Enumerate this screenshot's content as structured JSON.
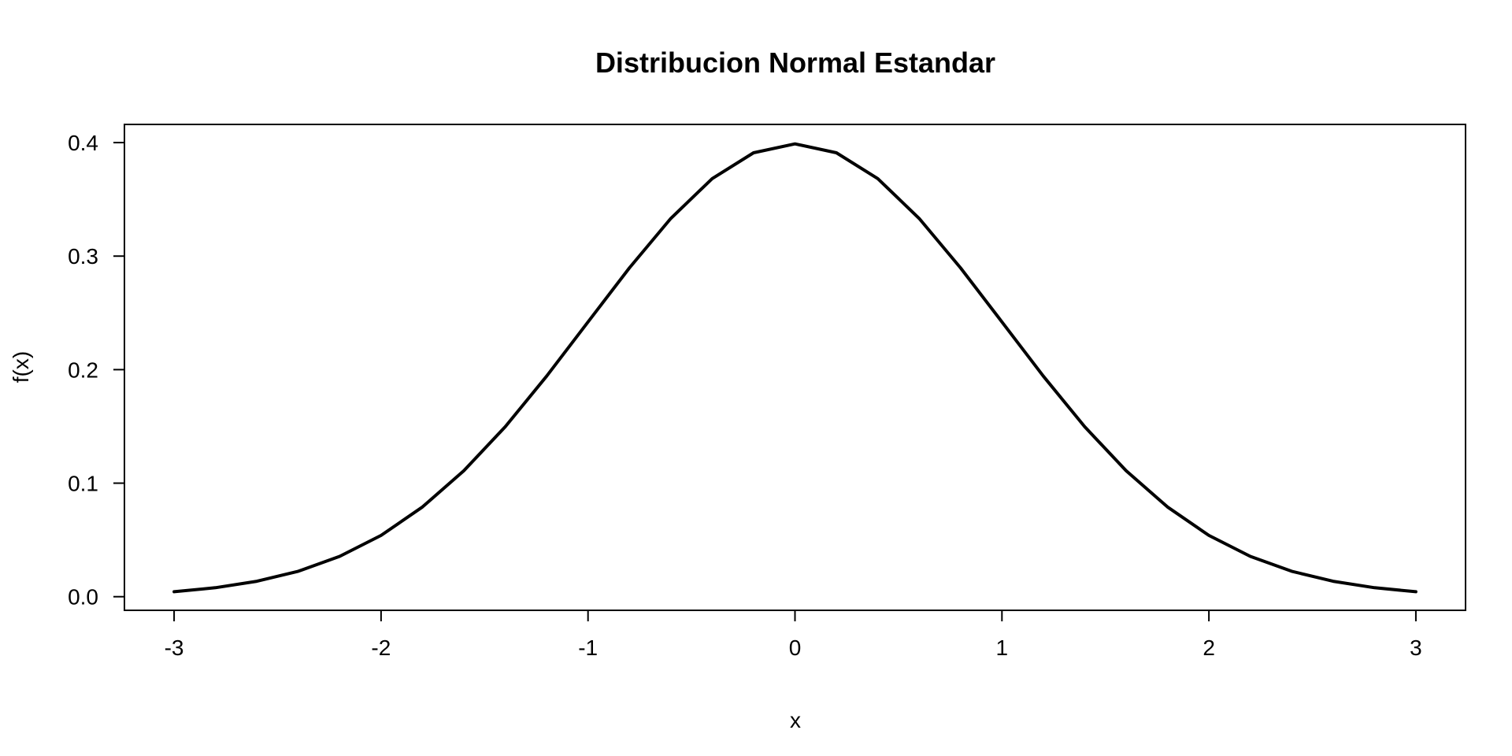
{
  "chart_data": {
    "type": "line",
    "title": "Distribucion Normal Estandar",
    "xlabel": "x",
    "ylabel": "f(x)",
    "xlim": [
      -3.24,
      3.24
    ],
    "ylim": [
      -0.012,
      0.416
    ],
    "x_ticks": [
      -3,
      -2,
      -1,
      0,
      1,
      2,
      3
    ],
    "x_tick_labels": [
      "-3",
      "-2",
      "-1",
      "0",
      "1",
      "2",
      "3"
    ],
    "y_ticks": [
      0.0,
      0.1,
      0.2,
      0.3,
      0.4
    ],
    "y_tick_labels": [
      "0.0",
      "0.1",
      "0.2",
      "0.3",
      "0.4"
    ],
    "grid": false,
    "legend": "none",
    "line_color": "#000000",
    "series": [
      {
        "x": [
          -3.0,
          -2.8,
          -2.6,
          -2.4,
          -2.2,
          -2.0,
          -1.8,
          -1.6,
          -1.4,
          -1.2,
          -1.0,
          -0.8,
          -0.6,
          -0.4,
          -0.2,
          0.0,
          0.2,
          0.4,
          0.6,
          0.8,
          1.0,
          1.2,
          1.4,
          1.6,
          1.8,
          2.0,
          2.2,
          2.4,
          2.6,
          2.8,
          3.0
        ],
        "y": [
          0.0044,
          0.0079,
          0.0136,
          0.0224,
          0.0355,
          0.054,
          0.079,
          0.1109,
          0.1497,
          0.1942,
          0.242,
          0.2897,
          0.3332,
          0.3683,
          0.391,
          0.3989,
          0.391,
          0.3683,
          0.3332,
          0.2897,
          0.242,
          0.1942,
          0.1497,
          0.1109,
          0.079,
          0.054,
          0.0355,
          0.0224,
          0.0136,
          0.0079,
          0.0044
        ]
      }
    ]
  }
}
